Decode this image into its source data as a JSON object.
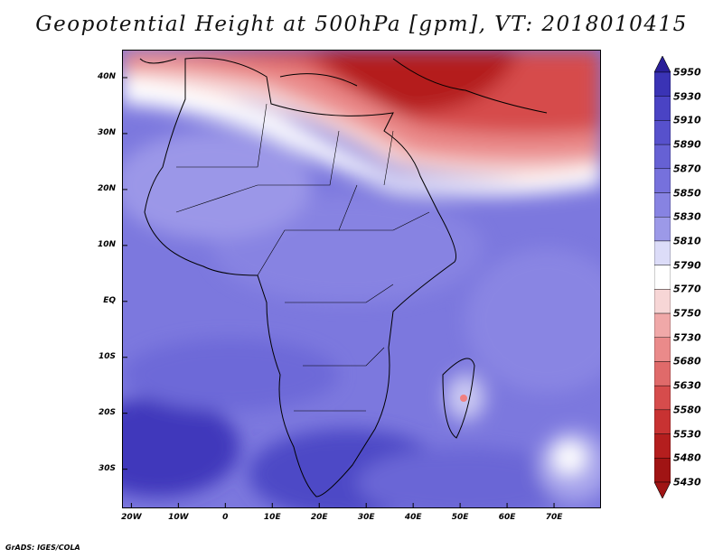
{
  "title": "Geopotential Height at 500hPa [gpm], VT: 2018010415",
  "credit": "GrADS: IGES/COLA",
  "map": {
    "lat_labels": [
      "40N",
      "30N",
      "20N",
      "10N",
      "EQ",
      "10S",
      "20S",
      "30S"
    ],
    "lat_values": [
      40,
      30,
      20,
      10,
      0,
      -10,
      -20,
      -30
    ],
    "lon_labels": [
      "20W",
      "10W",
      "0",
      "10E",
      "20E",
      "30E",
      "40E",
      "50E",
      "60E",
      "70E"
    ],
    "lon_values": [
      -20,
      -10,
      0,
      10,
      20,
      30,
      40,
      50,
      60,
      70
    ],
    "lon_range": [
      -22,
      80
    ],
    "lat_range": [
      -37,
      45
    ]
  },
  "colorbar": {
    "levels": [
      "5950",
      "5930",
      "5910",
      "5890",
      "5870",
      "5850",
      "5830",
      "5810",
      "5790",
      "5770",
      "5750",
      "5730",
      "5680",
      "5630",
      "5580",
      "5530",
      "5480",
      "5430"
    ],
    "colors": [
      "#2a1f99",
      "#3a33b5",
      "#4a43c4",
      "#5751cc",
      "#6661d4",
      "#7671dc",
      "#8783e2",
      "#9c99e8",
      "#dcdcf8",
      "#ffffff",
      "#f7d6d6",
      "#f0a8a8",
      "#ea8a8a",
      "#e06a6a",
      "#d64c4c",
      "#c83232",
      "#b41e1e",
      "#a01414"
    ]
  }
}
